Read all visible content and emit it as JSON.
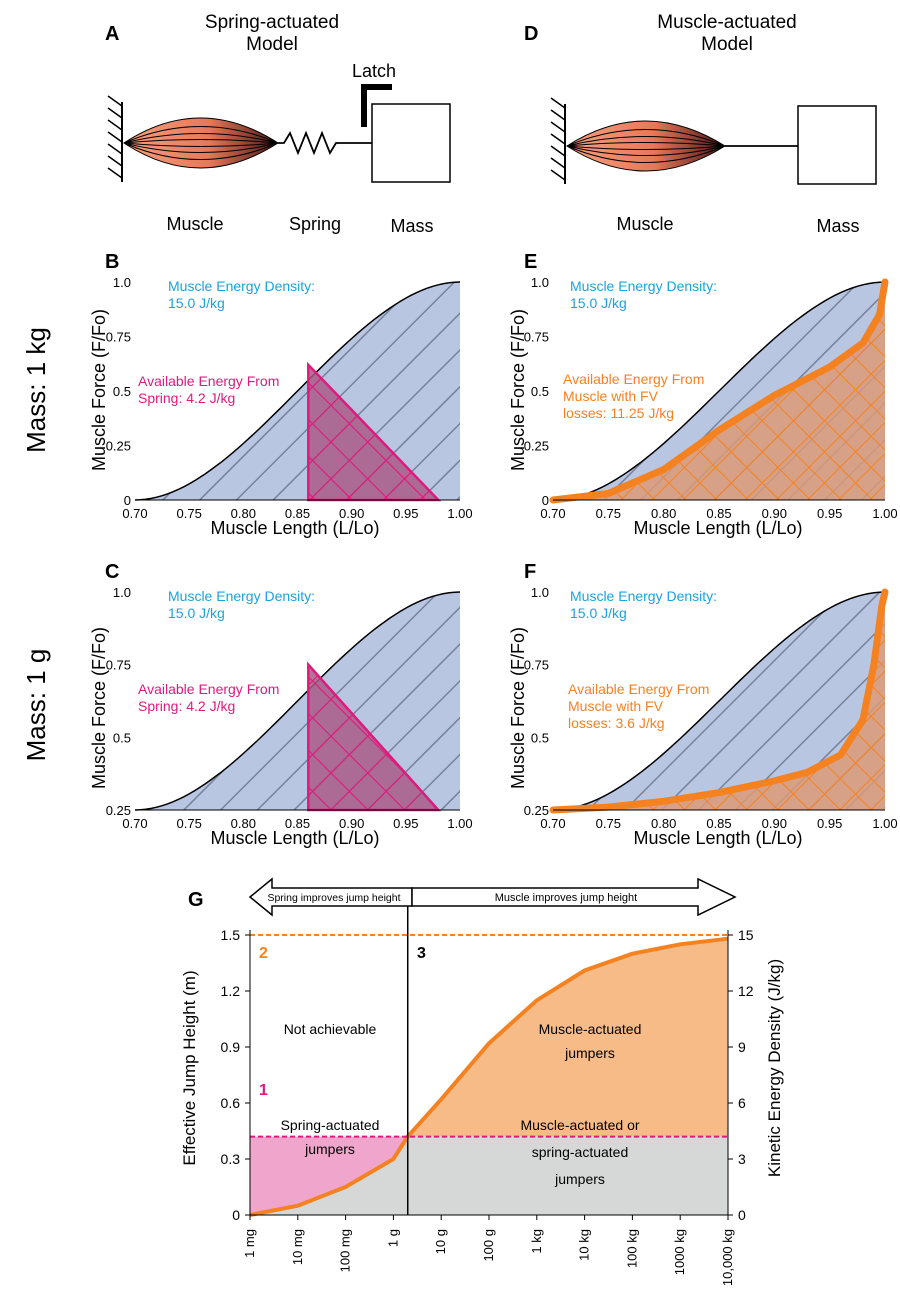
{
  "colors": {
    "muscle_energy": "#1aa3dd",
    "spring": "#e0197d",
    "orange": "#f58220",
    "blue_fill": "#b9c6e2",
    "pink_fill": "#a85b86",
    "orange_fill": "#dc9a77",
    "g_orange_fill": "#f7bb87",
    "g_gray_fill": "#d5d8d6",
    "g_pink_fill": "#f0a6cc"
  },
  "schematics": {
    "a": {
      "panel": "A",
      "title_line1": "Spring-actuated",
      "title_line2": "Model",
      "latch": "Latch",
      "label_muscle": "Muscle",
      "label_spring": "Spring",
      "label_mass": "Mass"
    },
    "d": {
      "panel": "D",
      "title_line1": "Muscle-actuated",
      "title_line2": "Model",
      "label_muscle": "Muscle",
      "label_mass": "Mass"
    }
  },
  "row_labels": {
    "row1": "Mass: 1 kg",
    "row2": "Mass: 1 g"
  },
  "chart_data": [
    {
      "id": "B",
      "type": "area",
      "panel": "B",
      "xlabel": "Muscle Length (L/Lo)",
      "ylabel": "Muscle Force (F/Fo)",
      "xlim": [
        0.7,
        1.0
      ],
      "ylim": [
        0,
        1.0
      ],
      "x_ticks": [
        "0.70",
        "0.75",
        "0.80",
        "0.85",
        "0.90",
        "0.95",
        "1.00"
      ],
      "y_ticks": [
        {
          "v": 0,
          "t": "0"
        },
        {
          "v": 0.25,
          "t": "0.25"
        },
        {
          "v": 0.5,
          "t": "0.5"
        },
        {
          "v": 0.75,
          "t": "0.75"
        },
        {
          "v": 1.0,
          "t": "1.0"
        }
      ],
      "energy_label_line1": "Muscle Energy Density:",
      "energy_label_line2": "15.0 J/kg",
      "avail_label_line1": "Available Energy From",
      "avail_label_line2": "Spring: 4.2 J/kg",
      "spring_region": {
        "x_start": 0.86,
        "x_end": 0.98,
        "y_top": 0.62
      }
    },
    {
      "id": "C",
      "type": "area",
      "panel": "C",
      "xlabel": "Muscle Length (L/Lo)",
      "ylabel": "Muscle Force (F/Fo)",
      "xlim": [
        0.7,
        1.0
      ],
      "ylim": [
        0.25,
        1.0
      ],
      "x_ticks": [
        "0.70",
        "0.75",
        "0.80",
        "0.85",
        "0.90",
        "0.95",
        "1.00"
      ],
      "y_ticks": [
        {
          "v": 0.25,
          "t": "0.25"
        },
        {
          "v": 0.5,
          "t": "0.5"
        },
        {
          "v": 0.75,
          "t": "0.75"
        },
        {
          "v": 1.0,
          "t": "1.0"
        }
      ],
      "energy_label_line1": "Muscle Energy Density:",
      "energy_label_line2": "15.0 J/kg",
      "avail_label_line1": "Available Energy From",
      "avail_label_line2": "Spring: 4.2 J/kg",
      "spring_region": {
        "x_start": 0.86,
        "x_end": 0.98,
        "y_top": 0.75
      }
    },
    {
      "id": "E",
      "type": "area",
      "panel": "E",
      "xlabel": "Muscle Length (L/Lo)",
      "ylabel": "Muscle Force (F/Fo)",
      "xlim": [
        0.7,
        1.0
      ],
      "ylim": [
        0,
        1.0
      ],
      "x_ticks": [
        "0.70",
        "0.75",
        "0.80",
        "0.85",
        "0.90",
        "0.95",
        "1.00"
      ],
      "y_ticks": [
        {
          "v": 0,
          "t": "0"
        },
        {
          "v": 0.25,
          "t": "0.25"
        },
        {
          "v": 0.5,
          "t": "0.5"
        },
        {
          "v": 0.75,
          "t": "0.75"
        },
        {
          "v": 1.0,
          "t": "1.0"
        }
      ],
      "energy_label_line1": "Muscle Energy Density:",
      "energy_label_line2": "15.0 J/kg",
      "avail_label_line1": "Available Energy From",
      "avail_label_line2": "Muscle with FV",
      "avail_label_line3": "losses:  11.25 J/kg",
      "fv_curve": [
        [
          0.7,
          0.0
        ],
        [
          0.75,
          0.03
        ],
        [
          0.8,
          0.14
        ],
        [
          0.85,
          0.32
        ],
        [
          0.9,
          0.48
        ],
        [
          0.95,
          0.61
        ],
        [
          0.98,
          0.72
        ],
        [
          0.995,
          0.85
        ],
        [
          1.0,
          1.0
        ]
      ]
    },
    {
      "id": "F",
      "type": "area",
      "panel": "F",
      "xlabel": "Muscle Length (L/Lo)",
      "ylabel": "Muscle Force (F/Fo)",
      "xlim": [
        0.7,
        1.0
      ],
      "ylim": [
        0.25,
        1.0
      ],
      "x_ticks": [
        "0.70",
        "0.75",
        "0.80",
        "0.85",
        "0.90",
        "0.95",
        "1.00"
      ],
      "y_ticks": [
        {
          "v": 0.25,
          "t": "0.25"
        },
        {
          "v": 0.5,
          "t": "0.5"
        },
        {
          "v": 0.75,
          "t": "0.75"
        },
        {
          "v": 1.0,
          "t": "1.0"
        }
      ],
      "energy_label_line1": "Muscle Energy Density:",
      "energy_label_line2": "15.0 J/kg",
      "avail_label_line1": "Available Energy From",
      "avail_label_line2": "Muscle with FV",
      "avail_label_line3": "losses:  3.6 J/kg",
      "fv_curve": [
        [
          0.7,
          0.25
        ],
        [
          0.75,
          0.26
        ],
        [
          0.8,
          0.28
        ],
        [
          0.85,
          0.31
        ],
        [
          0.9,
          0.35
        ],
        [
          0.93,
          0.38
        ],
        [
          0.96,
          0.44
        ],
        [
          0.98,
          0.56
        ],
        [
          0.99,
          0.75
        ],
        [
          0.997,
          0.95
        ],
        [
          1.0,
          1.0
        ]
      ]
    },
    {
      "id": "G",
      "type": "area",
      "panel": "G",
      "ylabel": "Effective Jump Height (m)",
      "ylabel_right": "Kinetic Energy Density (J/kg)",
      "ylim": [
        0,
        1.5
      ],
      "ylim_right": [
        0,
        15
      ],
      "x_categories": [
        "1 mg",
        "10 mg",
        "100 mg",
        "1 g",
        "10 g",
        "100 g",
        "1 kg",
        "10 kg",
        "100 kg",
        "1000 kg",
        "10,000 kg"
      ],
      "y_ticks": [
        "0",
        "0.3",
        "0.6",
        "0.9",
        "1.2",
        "1.5"
      ],
      "y_ticks_right": [
        "0",
        "3",
        "6",
        "9",
        "12",
        "15"
      ],
      "spring_height": 0.42,
      "muscle_max": 1.5,
      "crossover_mass": "2 g",
      "curve": [
        [
          -6,
          0.0
        ],
        [
          -5,
          0.05
        ],
        [
          -4,
          0.15
        ],
        [
          -3,
          0.3
        ],
        [
          -2.7,
          0.42
        ],
        [
          -2,
          0.62
        ],
        [
          -1,
          0.92
        ],
        [
          0,
          1.15
        ],
        [
          1,
          1.31
        ],
        [
          2,
          1.4
        ],
        [
          3,
          1.45
        ],
        [
          4,
          1.48
        ]
      ],
      "arrow_left_text": "Spring improves jump height",
      "arrow_right_text": "Muscle improves jump height",
      "marker_1": "1",
      "marker_2": "2",
      "marker_3": "3",
      "region_not_achievable": "Not achievable",
      "region_muscle_line1": "Muscle-actuated",
      "region_muscle_line2": "jumpers",
      "region_spring_line1": "Spring-actuated",
      "region_spring_line2": "jumpers",
      "region_either_line1": "Muscle-actuated or",
      "region_either_line2": "spring-actuated",
      "region_either_line3": "jumpers"
    }
  ]
}
